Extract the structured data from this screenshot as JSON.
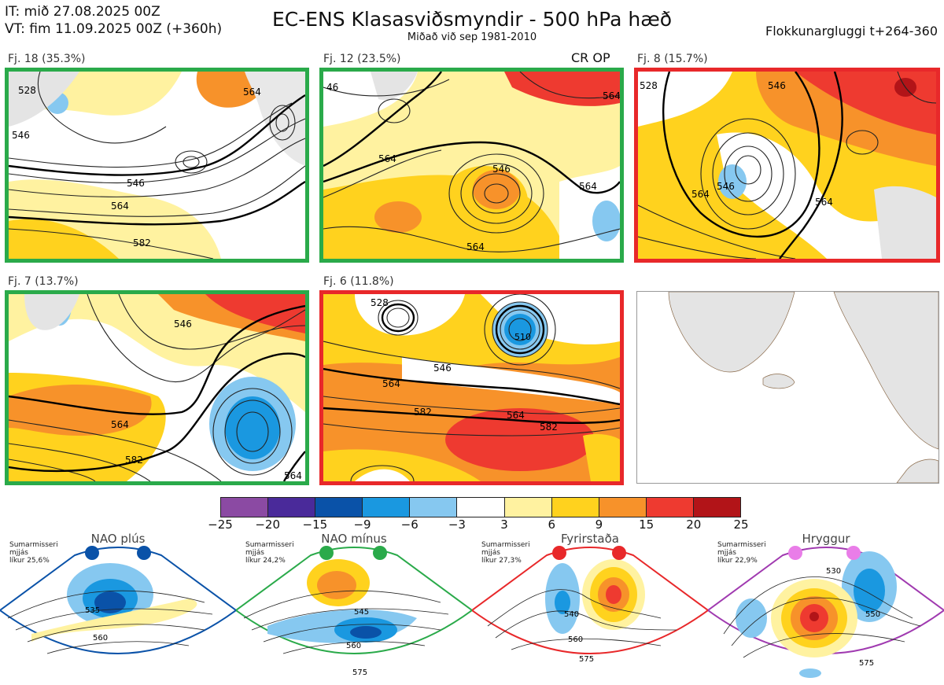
{
  "header": {
    "it_line": "IT: mið 27.08.2025 00Z",
    "vt_line": "VT: fim 11.09.2025 00Z  (+360h)",
    "title": "EC-ENS Klasasviðsmyndir - 500 hPa hæð",
    "subtitle": "Miðað við sep 1981-2010",
    "window": "Flokkunargluggi t+264-360",
    "cr_op": "CR OP"
  },
  "panels": [
    {
      "label": "Fj. 18 (35.3%)",
      "border": "#2aaa4a",
      "contours": [
        "528",
        "546",
        "546",
        "564",
        "564",
        "582"
      ]
    },
    {
      "label": "Fj. 12 (23.5%)",
      "border": "#2aaa4a",
      "contours": [
        "46",
        "564",
        "546",
        "564",
        "564",
        "564"
      ]
    },
    {
      "label": "Fj. 8 (15.7%)",
      "border": "#e8282a",
      "contours": [
        "528",
        "546",
        "546",
        "564",
        "564"
      ]
    },
    {
      "label": "Fj. 7 (13.7%)",
      "border": "#2aaa4a",
      "contours": [
        "546",
        "564",
        "582",
        "564"
      ]
    },
    {
      "label": "Fj. 6 (11.8%)",
      "border": "#e8282a",
      "contours": [
        "528",
        "546",
        "564",
        "582",
        "564",
        "582",
        "510"
      ]
    }
  ],
  "colorbar": {
    "colors": [
      "#8b4aa3",
      "#4a2a9a",
      "#0a52a8",
      "#1a98e0",
      "#86c8f0",
      "#ffffff",
      "#fff2a0",
      "#ffd21e",
      "#f7922a",
      "#ee3a30",
      "#b21418"
    ],
    "ticks": [
      "−25",
      "−20",
      "−15",
      "−9",
      "−6",
      "−3",
      "3",
      "6",
      "9",
      "15",
      "20",
      "25"
    ]
  },
  "regimes": [
    {
      "name": "NAO plús",
      "color": "#0a52a8",
      "info": [
        "Sumarmisseri",
        "mjjás",
        "líkur 25,6%"
      ],
      "contours": [
        "535",
        "560"
      ]
    },
    {
      "name": "NAO mínus",
      "color": "#2aaa4a",
      "info": [
        "Sumarmisseri",
        "mjjás",
        "líkur 24,2%"
      ],
      "contours": [
        "545",
        "560",
        "575"
      ]
    },
    {
      "name": "Fyrirstaða",
      "color": "#e8282a",
      "info": [
        "Sumarmisseri",
        "mjjás",
        "líkur 27,3%"
      ],
      "contours": [
        "540",
        "560",
        "575"
      ]
    },
    {
      "name": "Hryggur",
      "color": "#a03ab0",
      "info": [
        "Sumarmisseri",
        "mjjás",
        "líkur 22,9%"
      ],
      "contours": [
        "530",
        "550",
        "575"
      ]
    }
  ]
}
